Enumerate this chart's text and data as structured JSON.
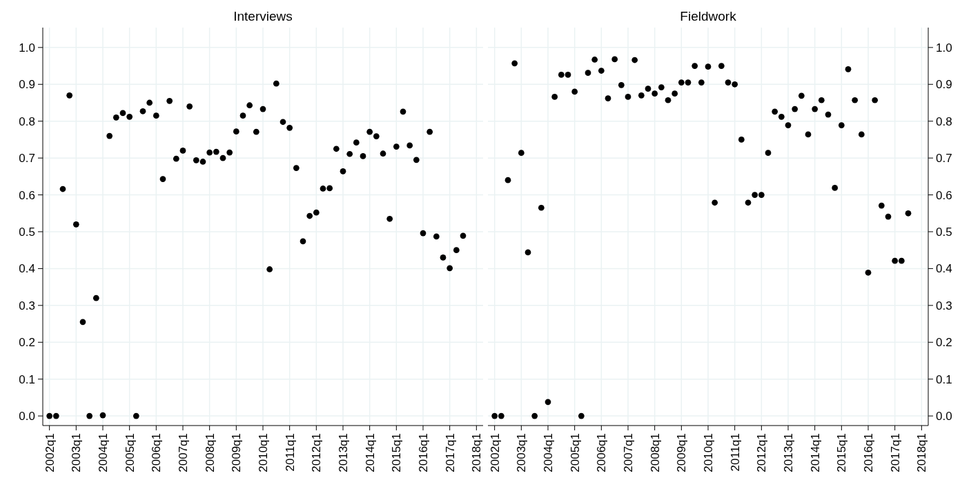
{
  "chart_data": [
    {
      "type": "scatter",
      "title": "Interviews",
      "marker": "circle",
      "grid": true,
      "categories": [
        "2002q1",
        null,
        null,
        null,
        "2003q1",
        null,
        null,
        null,
        "2004q1",
        null,
        null,
        null,
        "2005q1",
        null,
        null,
        null,
        "2006q1",
        null,
        null,
        null,
        "2007q1",
        null,
        null,
        null,
        "2008q1",
        null,
        null,
        null,
        "2009q1",
        null,
        null,
        null,
        "2010q1",
        null,
        null,
        null,
        "2011q1",
        null,
        null,
        null,
        "2012q1",
        null,
        null,
        null,
        "2013q1",
        null,
        null,
        null,
        "2014q1",
        null,
        null,
        null,
        "2015q1",
        null,
        null,
        null,
        "2016q1",
        null,
        null,
        null,
        "2017q1",
        null,
        null,
        null,
        "2018q1"
      ],
      "series": [
        {
          "color": "#000000",
          "values": [
            0,
            0,
            0.616,
            0.87,
            0.52,
            0.255,
            0,
            0.32,
            0.002,
            0.76,
            0.81,
            0.822,
            0.812,
            0,
            0.827,
            0.85,
            0.815,
            0.643,
            0.855,
            0.698,
            0.72,
            0.84,
            0.694,
            0.69,
            0.715,
            0.717,
            0.7,
            0.715,
            0.772,
            0.815,
            0.843,
            0.771,
            0.833,
            0.398,
            0.902,
            0.798,
            0.782,
            0.673,
            0.474,
            0.543,
            0.552,
            0.617,
            0.618,
            0.725,
            0.664,
            0.711,
            0.742,
            0.705,
            0.771,
            0.759,
            0.712,
            0.535,
            0.731,
            0.826,
            0.734,
            0.695,
            0.496,
            0.771,
            0.487,
            0.43,
            0.401,
            0.45,
            0.489,
            null,
            null
          ]
        }
      ],
      "ylim": [
        -0.026,
        1.054
      ],
      "yticks": [
        {
          "value": 0,
          "label": "0.0"
        },
        {
          "value": 0.1,
          "label": "0.1"
        },
        {
          "value": 0.2,
          "label": "0.2"
        },
        {
          "value": 0.3,
          "label": "0.3"
        },
        {
          "value": 0.4,
          "label": "0.4"
        },
        {
          "value": 0.5,
          "label": "0.5"
        },
        {
          "value": 0.6,
          "label": "0.6"
        },
        {
          "value": 0.7,
          "label": "0.7"
        },
        {
          "value": 0.8,
          "label": "0.8"
        },
        {
          "value": 0.9,
          "label": "0.9"
        },
        {
          "value": 1,
          "label": "1.0"
        }
      ]
    },
    {
      "type": "scatter",
      "title": "Fieldwork",
      "marker": "circle",
      "grid": true,
      "categories": [
        "2002q1",
        null,
        null,
        null,
        "2003q1",
        null,
        null,
        null,
        "2004q1",
        null,
        null,
        null,
        "2005q1",
        null,
        null,
        null,
        "2006q1",
        null,
        null,
        null,
        "2007q1",
        null,
        null,
        null,
        "2008q1",
        null,
        null,
        null,
        "2009q1",
        null,
        null,
        null,
        "2010q1",
        null,
        null,
        null,
        "2011q1",
        null,
        null,
        null,
        "2012q1",
        null,
        null,
        null,
        "2013q1",
        null,
        null,
        null,
        "2014q1",
        null,
        null,
        null,
        "2015q1",
        null,
        null,
        null,
        "2016q1",
        null,
        null,
        null,
        "2017q1",
        null,
        null,
        null,
        "2018q1"
      ],
      "series": [
        {
          "color": "#000000",
          "values": [
            0,
            0,
            0.64,
            0.957,
            0.714,
            0.444,
            0,
            0.565,
            0.038,
            0.866,
            0.926,
            0.926,
            0.88,
            0,
            0.931,
            0.967,
            0.937,
            0.862,
            0.968,
            0.898,
            0.866,
            0.966,
            0.87,
            0.888,
            0.875,
            0.892,
            0.857,
            0.875,
            0.905,
            0.905,
            0.95,
            0.905,
            0.948,
            0.579,
            0.95,
            0.905,
            0.9,
            0.75,
            0.579,
            0.6,
            0.6,
            0.714,
            0.826,
            0.812,
            0.789,
            0.833,
            0.869,
            0.764,
            0.833,
            0.857,
            0.818,
            0.619,
            0.789,
            0.941,
            0.857,
            0.764,
            0.389,
            0.857,
            0.571,
            0.541,
            0.421,
            0.421,
            0.55,
            null,
            null
          ]
        }
      ],
      "ylim": [
        -0.026,
        1.054
      ],
      "yticks": [
        {
          "value": 0,
          "label": "0.0"
        },
        {
          "value": 0.1,
          "label": "0.1"
        },
        {
          "value": 0.2,
          "label": "0.2"
        },
        {
          "value": 0.3,
          "label": "0.3"
        },
        {
          "value": 0.4,
          "label": "0.4"
        },
        {
          "value": 0.5,
          "label": "0.5"
        },
        {
          "value": 0.6,
          "label": "0.6"
        },
        {
          "value": 0.7,
          "label": "0.7"
        },
        {
          "value": 0.8,
          "label": "0.8"
        },
        {
          "value": 0.9,
          "label": "0.9"
        },
        {
          "value": 1,
          "label": "1.0"
        }
      ]
    }
  ]
}
